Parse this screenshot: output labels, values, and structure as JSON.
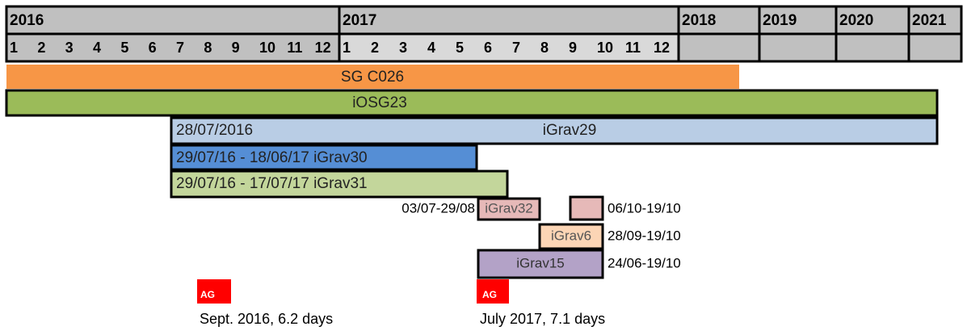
{
  "header": {
    "years": [
      "2016",
      "2017",
      "2018",
      "2019",
      "2020",
      "2021"
    ],
    "months_2016": [
      "1",
      "2",
      "3",
      "4",
      "5",
      "6",
      "7",
      "8",
      "9",
      "10",
      "11",
      "12"
    ],
    "months_2017": [
      "1",
      "2",
      "3",
      "4",
      "5",
      "6",
      "7",
      "8",
      "9",
      "10",
      "11",
      "12"
    ]
  },
  "bars": [
    {
      "label": "SG C026"
    },
    {
      "label": "iOSG23"
    },
    {
      "label": "iGrav29",
      "start_label": "28/07/2016"
    },
    {
      "label": "29/07/16 - 18/06/17 iGrav30"
    },
    {
      "label": "29/07/16 - 17/07/17 iGrav31"
    },
    {
      "label": "iGrav32",
      "left_label": "03/07-29/08",
      "right_label": "06/10-19/10"
    },
    {
      "label": "iGrav6",
      "right_label": "28/09-19/10"
    },
    {
      "label": "iGrav15",
      "right_label": "24/06-19/10"
    }
  ],
  "ag": [
    {
      "label": "AG",
      "caption": "Sept. 2016, 6.2 days"
    },
    {
      "label": "AG",
      "caption": "July 2017, 7.1 days"
    }
  ]
}
